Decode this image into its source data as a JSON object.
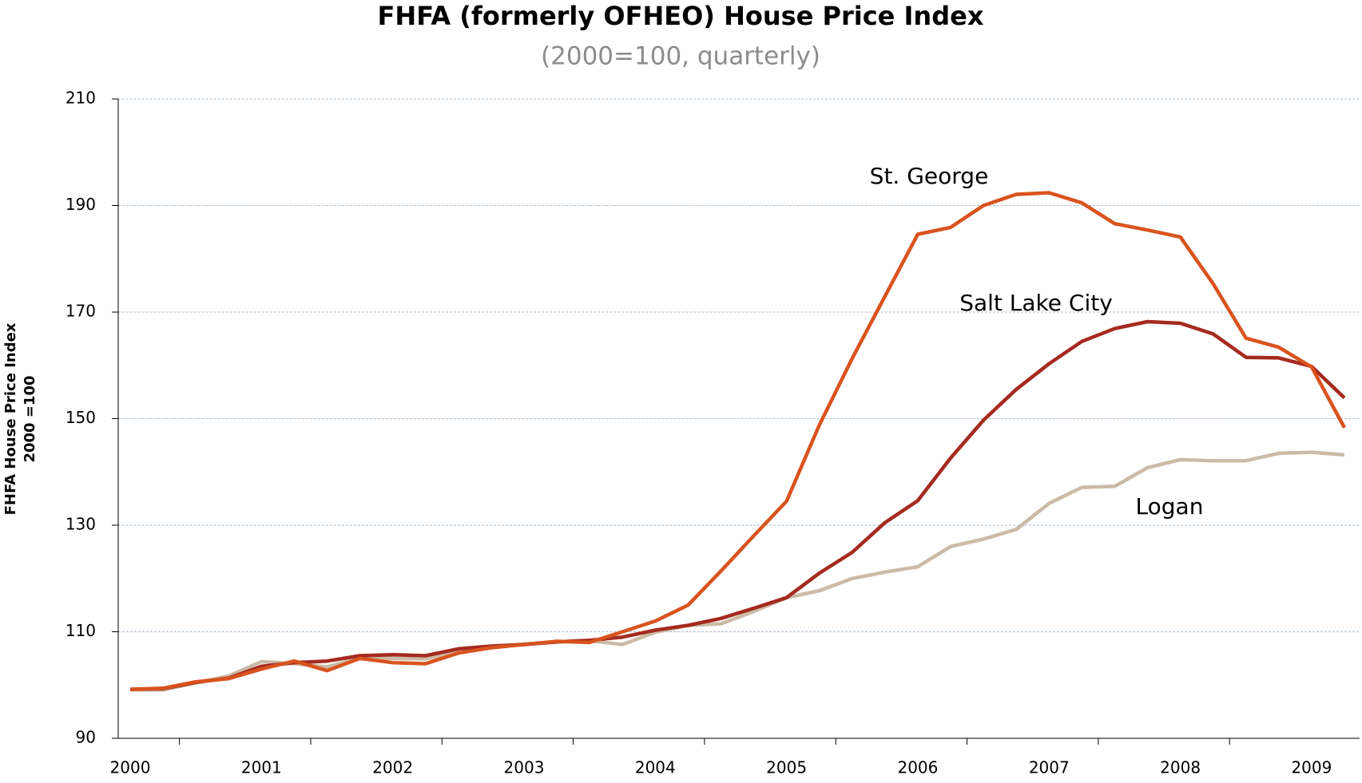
{
  "chart_data": {
    "type": "line",
    "title": "FHFA (formerly OFHEO) House Price Index",
    "subtitle": "(2000=100, quarterly)",
    "y_label": [
      "FHFA House Price Index",
      "2000 =100"
    ],
    "categories": [
      "2000",
      null,
      null,
      null,
      "2001",
      null,
      null,
      null,
      "2002",
      null,
      null,
      null,
      "2003",
      null,
      null,
      null,
      "2004",
      null,
      null,
      null,
      "2005",
      null,
      null,
      null,
      "2006",
      null,
      null,
      null,
      "2007",
      null,
      null,
      null,
      "2008",
      null,
      null,
      null,
      "2009",
      null
    ],
    "series": [
      {
        "name": "St. George",
        "color": "#d9531e",
        "values": [
          99.2,
          99.4,
          100.6,
          101.2,
          103.0,
          104.5,
          102.7,
          105.0,
          104.2,
          104.0,
          106.0,
          107.0,
          107.6,
          108.2,
          108.0,
          110.0,
          112.0,
          115.0,
          121.4,
          128.0,
          134.5,
          148.8,
          161.3,
          173.0,
          184.6,
          185.9,
          190.0,
          192.1,
          192.4,
          190.5,
          186.6,
          185.4,
          184.1,
          175.3,
          165.1,
          163.4,
          159.7,
          148.3
        ]
      },
      {
        "name": "Salt Lake City",
        "color": "#a52a1f",
        "values": [
          99.2,
          99.3,
          100.5,
          101.3,
          103.5,
          104.2,
          104.5,
          105.5,
          105.7,
          105.5,
          106.8,
          107.3,
          107.6,
          108.1,
          108.4,
          109.0,
          110.3,
          111.2,
          112.5,
          114.4,
          116.4,
          121.0,
          124.9,
          130.5,
          134.6,
          142.6,
          149.7,
          155.5,
          160.3,
          164.5,
          166.9,
          168.2,
          167.9,
          165.9,
          161.5,
          161.4,
          159.8,
          153.9
        ]
      },
      {
        "name": "Logan",
        "color": "#cbbba6",
        "values": [
          99.1,
          99.1,
          100.4,
          101.7,
          104.4,
          104.0,
          103.4,
          105.1,
          105.0,
          104.9,
          106.3,
          107.0,
          107.7,
          108.1,
          108.3,
          107.6,
          109.9,
          111.2,
          111.5,
          113.8,
          116.4,
          117.7,
          120.0,
          121.2,
          122.2,
          126.0,
          127.4,
          129.2,
          134.1,
          137.1,
          137.3,
          140.8,
          142.3,
          142.1,
          142.1,
          143.5,
          143.7,
          143.2
        ]
      }
    ],
    "ylim": [
      90,
      210
    ],
    "yticks": [
      90,
      110,
      130,
      150,
      170,
      190,
      210
    ],
    "grid": true
  }
}
